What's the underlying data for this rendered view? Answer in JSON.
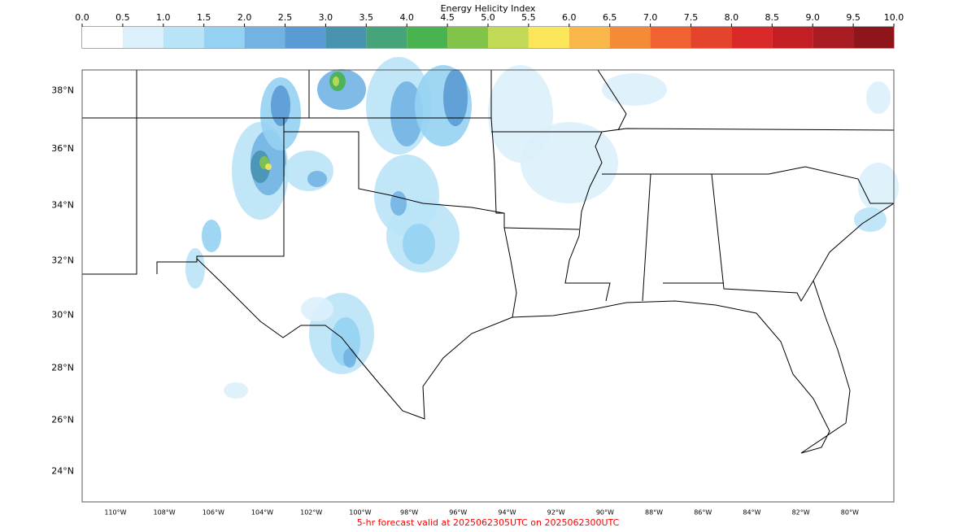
{
  "chart_data": {
    "type": "map",
    "colorbar_title": "Energy Helicity Index",
    "colorbar_ticks": [
      {
        "value": 0,
        "label": "0.0"
      },
      {
        "value": 0.5,
        "label": "0.5"
      },
      {
        "value": 1,
        "label": "1.0"
      },
      {
        "value": 1.5,
        "label": "1.5"
      },
      {
        "value": 2,
        "label": "2.0"
      },
      {
        "value": 2.5,
        "label": "2.5"
      },
      {
        "value": 3,
        "label": "3.0"
      },
      {
        "value": 3.5,
        "label": "3.5"
      },
      {
        "value": 4,
        "label": "4.0"
      },
      {
        "value": 4.5,
        "label": "4.5"
      },
      {
        "value": 5,
        "label": "5.0"
      },
      {
        "value": 5.5,
        "label": "5.5"
      },
      {
        "value": 6,
        "label": "6.0"
      },
      {
        "value": 6.5,
        "label": "6.5"
      },
      {
        "value": 7,
        "label": "7.0"
      },
      {
        "value": 7.5,
        "label": "7.5"
      },
      {
        "value": 8,
        "label": "8.0"
      },
      {
        "value": 8.5,
        "label": "8.5"
      },
      {
        "value": 9,
        "label": "9.0"
      },
      {
        "value": 9.5,
        "label": "9.5"
      },
      {
        "value": 10,
        "label": "10.0"
      }
    ],
    "colorbar_colors": [
      "#ffffff",
      "#dbf0fb",
      "#b9e3f7",
      "#95d1f2",
      "#72b3e3",
      "#5a9bd5",
      "#4893b0",
      "#45a47a",
      "#48b34f",
      "#82c44a",
      "#c2d955",
      "#fbe65a",
      "#f9b649",
      "#f48c37",
      "#f06330",
      "#e4432c",
      "#d92928",
      "#c41e25",
      "#a81b22",
      "#8e1519"
    ],
    "xlim": [
      -111.36,
      -78.2
    ],
    "ylim": [
      22.8,
      38.7
    ],
    "xticks": [
      {
        "value": -110,
        "label": "110°W"
      },
      {
        "value": -108,
        "label": "108°W"
      },
      {
        "value": -106,
        "label": "106°W"
      },
      {
        "value": -104,
        "label": "104°W"
      },
      {
        "value": -102,
        "label": "102°W"
      },
      {
        "value": -100,
        "label": "100°W"
      },
      {
        "value": -98,
        "label": "98°W"
      },
      {
        "value": -96,
        "label": "96°W"
      },
      {
        "value": -94,
        "label": "94°W"
      },
      {
        "value": -92,
        "label": "92°W"
      },
      {
        "value": -90,
        "label": "90°W"
      },
      {
        "value": -88,
        "label": "88°W"
      },
      {
        "value": -86,
        "label": "86°W"
      },
      {
        "value": -84,
        "label": "84°W"
      },
      {
        "value": -82,
        "label": "82°W"
      },
      {
        "value": -80,
        "label": "80°W"
      }
    ],
    "yticks": [
      {
        "value": 24,
        "label": "24°N"
      },
      {
        "value": 26,
        "label": "26°N"
      },
      {
        "value": 28,
        "label": "28°N"
      },
      {
        "value": 30,
        "label": "30°N"
      },
      {
        "value": 32,
        "label": "32°N"
      },
      {
        "value": 34,
        "label": "34°N"
      },
      {
        "value": 36,
        "label": "36°N"
      },
      {
        "value": 38,
        "label": "38°N"
      }
    ],
    "footer": "5-hr forecast valid at 2025062305UTC on 2025062300UTC",
    "footer_color": "#ff0000"
  }
}
